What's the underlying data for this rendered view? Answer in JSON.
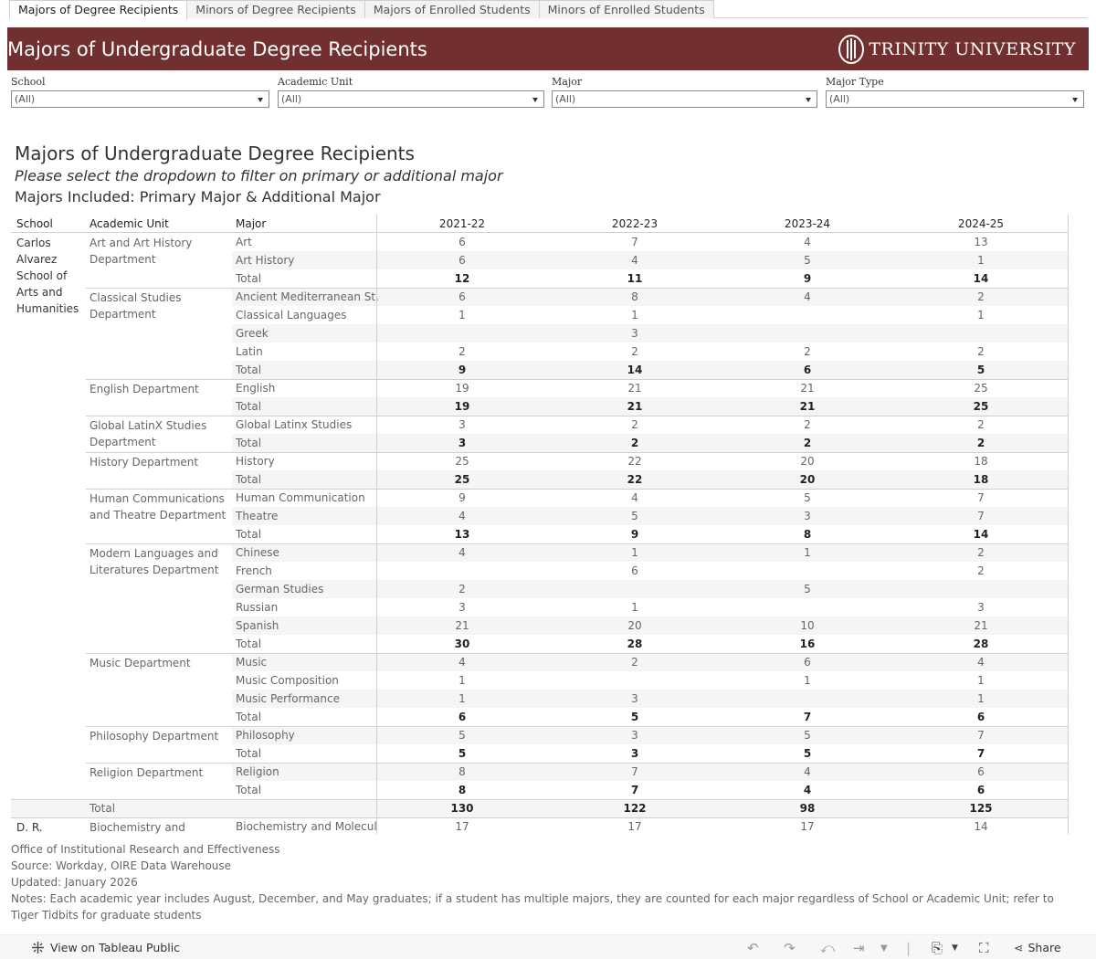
{
  "tabs": [
    "Majors of Degree Recipients",
    "Minors of Degree Recipients",
    "Majors of Enrolled Students",
    "Minors of Enrolled Students"
  ],
  "banner": {
    "title": "Majors of Undergraduate Degree Recipients",
    "logo_text": "TRINITY UNIVERSITY"
  },
  "filters": [
    {
      "label": "School",
      "value": "(All)"
    },
    {
      "label": "Academic Unit",
      "value": "(All)"
    },
    {
      "label": "Major",
      "value": "(All)"
    },
    {
      "label": "Major Type",
      "value": "(All)"
    }
  ],
  "report": {
    "title": "Majors of Undergraduate Degree Recipients",
    "subtitle": "Please select the dropdown to filter on primary or additional major",
    "included": "Majors Included: Primary Major & Additional Major"
  },
  "table": {
    "headers": {
      "school": "School",
      "unit": "Academic Unit",
      "major": "Major",
      "years": [
        "2021-22",
        "2022-23",
        "2023-24",
        "2024-25"
      ]
    },
    "schools": [
      {
        "lines": [
          "Carlos",
          "Alvarez",
          "School of",
          "Arts and",
          "Humanities"
        ]
      },
      {
        "lines": [
          "D. R."
        ]
      }
    ],
    "units": [
      {
        "lines": [
          "Art and Art History",
          "Department"
        ]
      },
      {
        "lines": [
          "Classical Studies",
          "Department"
        ]
      },
      {
        "lines": [
          "English Department"
        ]
      },
      {
        "lines": [
          "Global LatinX Studies",
          "Department"
        ]
      },
      {
        "lines": [
          "History Department"
        ]
      },
      {
        "lines": [
          "Human Communications",
          "and Theatre Department"
        ]
      },
      {
        "lines": [
          "Modern Languages and",
          "Literatures Department"
        ]
      },
      {
        "lines": [
          "Music Department"
        ]
      },
      {
        "lines": [
          "Philosophy Department"
        ]
      },
      {
        "lines": [
          "Religion Department"
        ]
      },
      {
        "lines": [
          "Biochemistry and"
        ]
      }
    ],
    "rows": [
      {
        "major": "Art",
        "v": [
          "6",
          "7",
          "4",
          "13"
        ]
      },
      {
        "major": "Art History",
        "v": [
          "6",
          "4",
          "5",
          "1"
        ]
      },
      {
        "major": "Total",
        "v": [
          "12",
          "11",
          "9",
          "14"
        ],
        "total": true
      },
      {
        "major": "Ancient Mediterranean St..",
        "v": [
          "6",
          "8",
          "4",
          "2"
        ]
      },
      {
        "major": "Classical Languages",
        "v": [
          "1",
          "1",
          "",
          "1"
        ]
      },
      {
        "major": "Greek",
        "v": [
          "",
          "3",
          "",
          ""
        ]
      },
      {
        "major": "Latin",
        "v": [
          "2",
          "2",
          "2",
          "2"
        ]
      },
      {
        "major": "Total",
        "v": [
          "9",
          "14",
          "6",
          "5"
        ],
        "total": true
      },
      {
        "major": "English",
        "v": [
          "19",
          "21",
          "21",
          "25"
        ]
      },
      {
        "major": "Total",
        "v": [
          "19",
          "21",
          "21",
          "25"
        ],
        "total": true
      },
      {
        "major": "Global Latinx Studies",
        "v": [
          "3",
          "2",
          "2",
          "2"
        ]
      },
      {
        "major": "Total",
        "v": [
          "3",
          "2",
          "2",
          "2"
        ],
        "total": true
      },
      {
        "major": "History",
        "v": [
          "25",
          "22",
          "20",
          "18"
        ]
      },
      {
        "major": "Total",
        "v": [
          "25",
          "22",
          "20",
          "18"
        ],
        "total": true
      },
      {
        "major": "Human Communication",
        "v": [
          "9",
          "4",
          "5",
          "7"
        ]
      },
      {
        "major": "Theatre",
        "v": [
          "4",
          "5",
          "3",
          "7"
        ]
      },
      {
        "major": "Total",
        "v": [
          "13",
          "9",
          "8",
          "14"
        ],
        "total": true
      },
      {
        "major": "Chinese",
        "v": [
          "4",
          "1",
          "1",
          "2"
        ]
      },
      {
        "major": "French",
        "v": [
          "",
          "6",
          "",
          "2"
        ]
      },
      {
        "major": "German Studies",
        "v": [
          "2",
          "",
          "5",
          ""
        ]
      },
      {
        "major": "Russian",
        "v": [
          "3",
          "1",
          "",
          "3"
        ]
      },
      {
        "major": "Spanish",
        "v": [
          "21",
          "20",
          "10",
          "21"
        ]
      },
      {
        "major": "Total",
        "v": [
          "30",
          "28",
          "16",
          "28"
        ],
        "total": true
      },
      {
        "major": "Music",
        "v": [
          "4",
          "2",
          "6",
          "4"
        ]
      },
      {
        "major": "Music Composition",
        "v": [
          "1",
          "",
          "1",
          "1"
        ]
      },
      {
        "major": "Music Performance",
        "v": [
          "1",
          "3",
          "",
          "1"
        ]
      },
      {
        "major": "Total",
        "v": [
          "6",
          "5",
          "7",
          "6"
        ],
        "total": true
      },
      {
        "major": "Philosophy",
        "v": [
          "5",
          "3",
          "5",
          "7"
        ]
      },
      {
        "major": "Total",
        "v": [
          "5",
          "3",
          "5",
          "7"
        ],
        "total": true
      },
      {
        "major": "Religion",
        "v": [
          "8",
          "7",
          "4",
          "6"
        ]
      },
      {
        "major": "Total",
        "v": [
          "8",
          "7",
          "4",
          "6"
        ],
        "total": true
      },
      {
        "major": "",
        "unit_label": "Total",
        "v": [
          "130",
          "122",
          "98",
          "125"
        ],
        "total": true,
        "school_total": true
      },
      {
        "major": "Biochemistry and Molecul..",
        "v": [
          "17",
          "17",
          "17",
          "14"
        ]
      }
    ]
  },
  "notes": [
    "Office of Institutional Research and Effectiveness",
    "Source: Workday, OIRE Data Warehouse",
    "Updated: January 2026",
    "Notes: Each academic year includes August, December, and May graduates; if a student has multiple majors, they are counted for each major regardless of School or Academic Unit; refer to Tiger Tidbits for graduate students"
  ],
  "toolbar": {
    "view_label": "View on Tableau Public",
    "share_label": "Share"
  }
}
